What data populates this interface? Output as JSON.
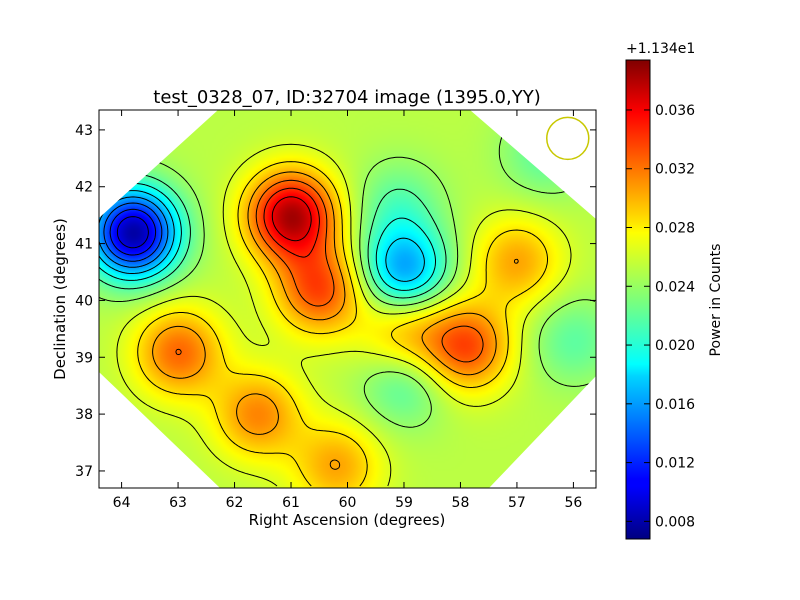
{
  "chart_data": {
    "type": "heatmap",
    "title": "test_0328_07, ID:32704 image (1395.0,YY)",
    "xlabel": "Right Ascension (degrees)",
    "ylabel": "Declination (degrees)",
    "xlim": [
      64.4,
      55.6
    ],
    "ylim": [
      36.7,
      43.35
    ],
    "x_ticks": [
      "64",
      "63",
      "62",
      "61",
      "60",
      "59",
      "58",
      "57",
      "56"
    ],
    "y_ticks": [
      "37",
      "38",
      "39",
      "40",
      "41",
      "42",
      "43"
    ],
    "colorbar": {
      "label": "Power in Counts",
      "offset_label": "+1.134e1",
      "vmin": 0.0068,
      "vmax": 0.0394,
      "ticks": [
        "0.008",
        "0.012",
        "0.016",
        "0.020",
        "0.024",
        "0.028",
        "0.032",
        "0.036"
      ],
      "colormap": "jet"
    },
    "background_level": 0.025,
    "features": [
      {
        "ra": 61.0,
        "dec": 41.5,
        "peak": 0.038
      },
      {
        "ra": 60.5,
        "dec": 40.2,
        "peak": 0.033
      },
      {
        "ra": 63.0,
        "dec": 39.1,
        "peak": 0.032
      },
      {
        "ra": 61.6,
        "dec": 38.0,
        "peak": 0.031
      },
      {
        "ra": 60.2,
        "dec": 37.1,
        "peak": 0.03
      },
      {
        "ra": 57.9,
        "dec": 39.2,
        "peak": 0.033
      },
      {
        "ra": 57.0,
        "dec": 40.7,
        "peak": 0.03
      },
      {
        "ra": 59.0,
        "dec": 39.4,
        "peak": 0.03
      },
      {
        "ra": 59.0,
        "dec": 40.55,
        "peak": 0.016
      },
      {
        "ra": 59.0,
        "dec": 38.6,
        "peak": 0.021
      },
      {
        "ra": 59.1,
        "dec": 41.7,
        "peak": 0.022
      },
      {
        "ra": 56.5,
        "dec": 42.6,
        "peak": 0.022
      },
      {
        "ra": 56.0,
        "dec": 39.3,
        "peak": 0.022
      },
      {
        "ra": 63.8,
        "dec": 41.2,
        "peak": 0.008
      }
    ],
    "beam_marker": {
      "ra": 56.1,
      "dec": 42.85,
      "color": "#c8c800"
    },
    "grid": false
  }
}
